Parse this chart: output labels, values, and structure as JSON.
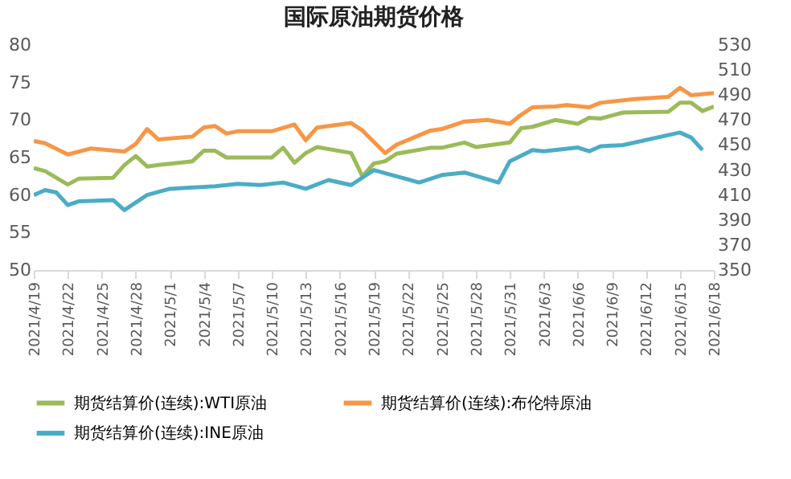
{
  "chart_data": {
    "type": "line",
    "title": "国际原油期货价格",
    "xlim": [
      "2021-04-19",
      "2021-06-18"
    ],
    "xticks": [
      {
        "value": "2021-04-19",
        "label": "2021/4/19"
      },
      {
        "value": "2021-04-22",
        "label": "2021/4/22"
      },
      {
        "value": "2021-04-25",
        "label": "2021/4/25"
      },
      {
        "value": "2021-04-28",
        "label": "2021/4/28"
      },
      {
        "value": "2021-05-01",
        "label": "2021/5/1"
      },
      {
        "value": "2021-05-04",
        "label": "2021/5/4"
      },
      {
        "value": "2021-05-07",
        "label": "2021/5/7"
      },
      {
        "value": "2021-05-10",
        "label": "2021/5/10"
      },
      {
        "value": "2021-05-13",
        "label": "2021/5/13"
      },
      {
        "value": "2021-05-16",
        "label": "2021/5/16"
      },
      {
        "value": "2021-05-19",
        "label": "2021/5/19"
      },
      {
        "value": "2021-05-22",
        "label": "2021/5/22"
      },
      {
        "value": "2021-05-25",
        "label": "2021/5/25"
      },
      {
        "value": "2021-05-28",
        "label": "2021/5/28"
      },
      {
        "value": "2021-05-31",
        "label": "2021/5/31"
      },
      {
        "value": "2021-06-03",
        "label": "2021/6/3"
      },
      {
        "value": "2021-06-06",
        "label": "2021/6/6"
      },
      {
        "value": "2021-06-09",
        "label": "2021/6/9"
      },
      {
        "value": "2021-06-12",
        "label": "2021/6/12"
      },
      {
        "value": "2021-06-15",
        "label": "2021/6/15"
      },
      {
        "value": "2021-06-18",
        "label": "2021/6/18"
      }
    ],
    "ylim": [
      50,
      80
    ],
    "yticks": [
      50,
      55,
      60,
      65,
      70,
      75,
      80
    ],
    "y2lim": [
      350,
      530
    ],
    "y2ticks": [
      350,
      370,
      390,
      410,
      430,
      450,
      470,
      490,
      510,
      530
    ],
    "grid": false,
    "marker": "none",
    "line_style": "solid",
    "legend": "bottom",
    "series": [
      {
        "name": "期货结算价(连续):WTI原油",
        "color": "#9bbb59",
        "x": [
          "2021-04-19",
          "2021-04-20",
          "2021-04-22",
          "2021-04-23",
          "2021-04-26",
          "2021-04-27",
          "2021-04-28",
          "2021-04-29",
          "2021-04-30",
          "2021-05-03",
          "2021-05-04",
          "2021-05-05",
          "2021-05-06",
          "2021-05-10",
          "2021-05-11",
          "2021-05-12",
          "2021-05-13",
          "2021-05-14",
          "2021-05-17",
          "2021-05-18",
          "2021-05-19",
          "2021-05-20",
          "2021-05-21",
          "2021-05-24",
          "2021-05-25",
          "2021-05-27",
          "2021-05-28",
          "2021-05-31",
          "2021-06-01",
          "2021-06-02",
          "2021-06-04",
          "2021-06-06",
          "2021-06-07",
          "2021-06-08",
          "2021-06-10",
          "2021-06-14",
          "2021-06-15",
          "2021-06-16",
          "2021-06-17",
          "2021-06-18"
        ],
        "values": [
          63.6,
          63.2,
          61.4,
          62.2,
          62.3,
          64.0,
          65.2,
          63.8,
          64.0,
          64.5,
          65.9,
          65.9,
          65.0,
          65.0,
          66.3,
          64.3,
          65.6,
          66.4,
          65.6,
          62.5,
          64.2,
          64.5,
          65.5,
          66.3,
          66.3,
          67.0,
          66.4,
          67.0,
          68.9,
          69.1,
          70.0,
          69.5,
          70.3,
          70.2,
          71.0,
          71.1,
          72.3,
          72.3,
          71.2,
          71.8
        ]
      },
      {
        "name": "期货结算价(连续):布伦特原油",
        "color": "#f79646",
        "x": [
          "2021-04-19",
          "2021-04-20",
          "2021-04-22",
          "2021-04-24",
          "2021-04-27",
          "2021-04-28",
          "2021-04-29",
          "2021-04-30",
          "2021-05-03",
          "2021-05-04",
          "2021-05-05",
          "2021-05-06",
          "2021-05-07",
          "2021-05-10",
          "2021-05-12",
          "2021-05-13",
          "2021-05-14",
          "2021-05-17",
          "2021-05-18",
          "2021-05-20",
          "2021-05-21",
          "2021-05-24",
          "2021-05-25",
          "2021-05-27",
          "2021-05-29",
          "2021-05-31",
          "2021-06-01",
          "2021-06-02",
          "2021-06-04",
          "2021-06-05",
          "2021-06-07",
          "2021-06-08",
          "2021-06-11",
          "2021-06-14",
          "2021-06-15",
          "2021-06-16",
          "2021-06-18"
        ],
        "values": [
          67.2,
          66.9,
          65.4,
          66.2,
          65.8,
          66.8,
          68.8,
          67.4,
          67.8,
          69.0,
          69.2,
          68.2,
          68.5,
          68.5,
          69.4,
          67.3,
          69.0,
          69.6,
          68.6,
          65.6,
          66.7,
          68.6,
          68.8,
          69.8,
          70.0,
          69.5,
          70.7,
          71.7,
          71.8,
          72.0,
          71.7,
          72.3,
          72.8,
          73.1,
          74.3,
          73.3,
          73.6
        ]
      },
      {
        "name": "期货结算价(连续):INE原油",
        "color": "#4bacc6",
        "axis": "y2",
        "x": [
          "2021-04-19",
          "2021-04-20",
          "2021-04-21",
          "2021-04-22",
          "2021-04-23",
          "2021-04-26",
          "2021-04-27",
          "2021-04-29",
          "2021-05-01",
          "2021-05-03",
          "2021-05-05",
          "2021-05-07",
          "2021-05-09",
          "2021-05-11",
          "2021-05-13",
          "2021-05-15",
          "2021-05-17",
          "2021-05-19",
          "2021-05-21",
          "2021-05-23",
          "2021-05-25",
          "2021-05-27",
          "2021-05-30",
          "2021-05-31",
          "2021-06-02",
          "2021-06-03",
          "2021-06-06",
          "2021-06-07",
          "2021-06-08",
          "2021-06-10",
          "2021-06-13",
          "2021-06-15",
          "2021-06-16",
          "2021-06-17"
        ],
        "values": [
          410,
          414,
          412,
          402,
          405,
          406,
          398,
          410,
          415,
          416,
          417,
          419,
          418,
          420,
          415,
          422,
          418,
          430,
          425,
          420,
          426,
          428,
          420,
          437,
          446,
          445,
          448,
          445,
          449,
          450,
          456,
          460,
          456,
          446
        ]
      }
    ]
  }
}
